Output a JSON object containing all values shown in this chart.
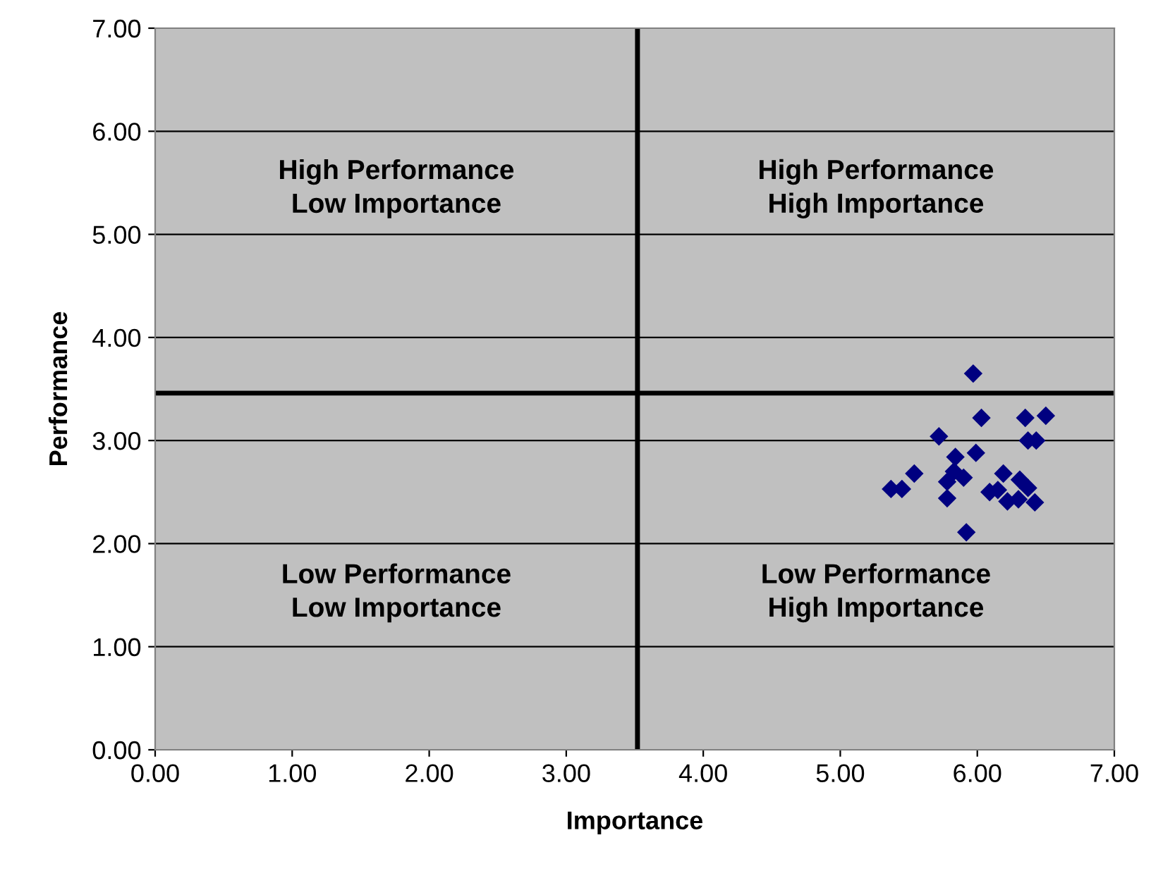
{
  "chart_data": {
    "type": "scatter",
    "xlabel": "Importance",
    "ylabel": "Performance",
    "x": [
      5.97,
      6.03,
      6.35,
      6.5,
      5.72,
      6.37,
      6.43,
      5.99,
      5.84,
      5.54,
      5.83,
      5.9,
      6.19,
      5.37,
      5.45,
      5.78,
      6.09,
      6.15,
      6.31,
      6.37,
      6.22,
      6.3,
      6.42,
      5.78,
      5.92
    ],
    "series": [
      {
        "color": "#000080",
        "values": [
          3.65,
          3.22,
          3.22,
          3.24,
          3.04,
          3.0,
          3.0,
          2.88,
          2.84,
          2.68,
          2.7,
          2.64,
          2.68,
          2.53,
          2.53,
          2.6,
          2.5,
          2.52,
          2.62,
          2.54,
          2.41,
          2.43,
          2.4,
          2.44,
          2.11
        ]
      }
    ],
    "marker": "diamond",
    "grid": "y",
    "xlim": [
      0,
      7
    ],
    "xticks": [
      {
        "value": 0,
        "label": "0.00"
      },
      {
        "value": 1,
        "label": "1.00"
      },
      {
        "value": 2,
        "label": "2.00"
      },
      {
        "value": 3,
        "label": "3.00"
      },
      {
        "value": 4,
        "label": "4.00"
      },
      {
        "value": 5,
        "label": "5.00"
      },
      {
        "value": 6,
        "label": "6.00"
      },
      {
        "value": 7,
        "label": "7.00"
      }
    ],
    "ylim": [
      0,
      7
    ],
    "yticks": [
      {
        "value": 0,
        "label": "0.00"
      },
      {
        "value": 1,
        "label": "1.00"
      },
      {
        "value": 2,
        "label": "2.00"
      },
      {
        "value": 3,
        "label": "3.00"
      },
      {
        "value": 4,
        "label": "4.00"
      },
      {
        "value": 5,
        "label": "5.00"
      },
      {
        "value": 6,
        "label": "6.00"
      },
      {
        "value": 7,
        "label": "7.00"
      }
    ],
    "ref_lines": [
      {
        "axis": "x",
        "value": 3.52,
        "color": "#000000"
      },
      {
        "axis": "y",
        "value": 3.46,
        "color": "#000000"
      }
    ],
    "annotations": [
      "High Performance\nLow Importance",
      "High Performance\nHigh Importance",
      "Low Performance\nLow Importance",
      "Low Performance\nHigh Importance"
    ]
  }
}
